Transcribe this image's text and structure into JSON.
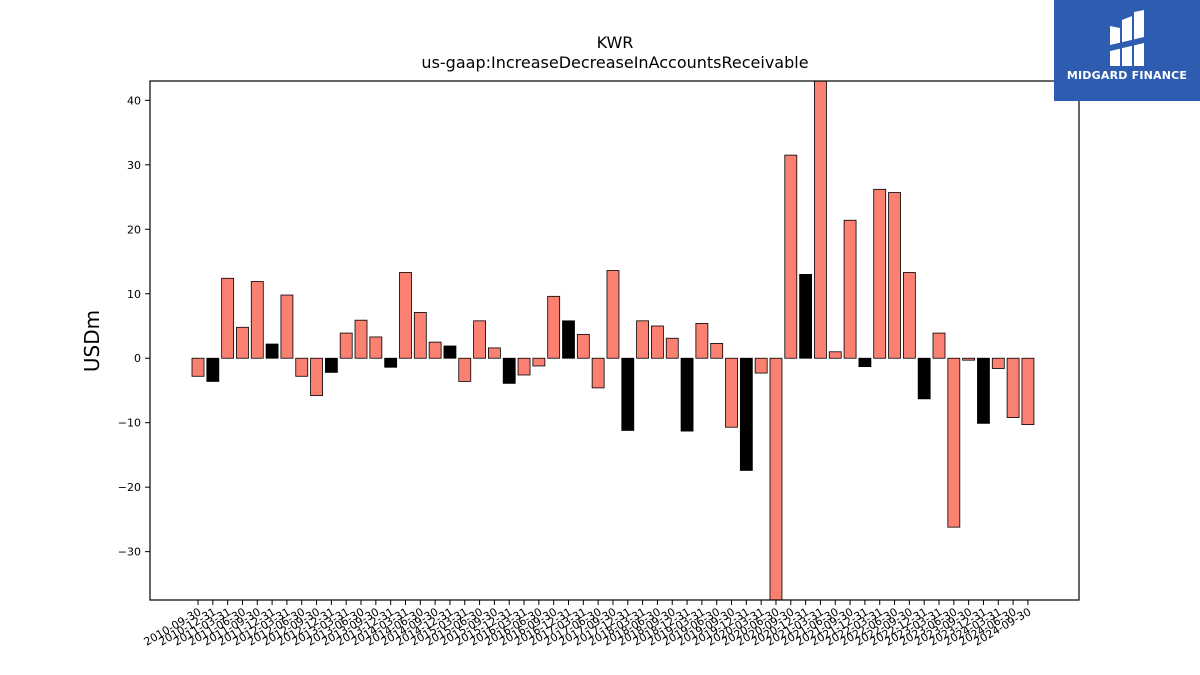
{
  "logo": {
    "text": "MIDGARD FINANCE"
  },
  "chart_data": {
    "type": "bar",
    "title": "KWR",
    "subtitle": "us-gaap:IncreaseDecreaseInAccountsReceivable",
    "xlabel": "",
    "ylabel": "USDm",
    "ylim": [
      -37.5,
      43
    ],
    "yticks": [
      -30,
      -20,
      -10,
      0,
      10,
      20,
      30,
      40
    ],
    "colors": {
      "default": "#fa8072",
      "highlight": "#000000",
      "edge": "#000000"
    },
    "categories": [
      "2010-09-30",
      "2010-12-31",
      "2011-03-31",
      "2011-06-30",
      "2011-09-30",
      "2011-12-31",
      "2012-03-31",
      "2012-06-30",
      "2012-09-30",
      "2012-12-31",
      "2013-03-31",
      "2013-06-30",
      "2013-09-30",
      "2013-12-31",
      "2014-03-31",
      "2014-06-30",
      "2014-09-30",
      "2014-12-31",
      "2015-03-31",
      "2015-06-30",
      "2015-09-30",
      "2015-12-31",
      "2016-03-31",
      "2016-06-30",
      "2016-09-30",
      "2016-12-31",
      "2017-03-31",
      "2017-06-30",
      "2017-09-30",
      "2017-12-31",
      "2018-03-31",
      "2018-06-30",
      "2018-09-30",
      "2018-12-31",
      "2019-03-31",
      "2019-06-30",
      "2019-09-30",
      "2019-12-31",
      "2020-03-31",
      "2020-06-30",
      "2020-09-30",
      "2020-12-31",
      "2021-03-31",
      "2021-06-30",
      "2021-09-30",
      "2021-12-31",
      "2022-03-31",
      "2022-06-30",
      "2022-09-30",
      "2022-12-31",
      "2023-03-31",
      "2023-06-30",
      "2023-09-30",
      "2023-12-31",
      "2024-03-31",
      "2024-06-30",
      "2024-09-30"
    ],
    "values": [
      -2.8,
      -3.6,
      12.4,
      4.8,
      11.9,
      2.2,
      9.8,
      -2.8,
      -5.8,
      -2.2,
      3.9,
      5.9,
      3.3,
      -1.4,
      13.3,
      7.1,
      2.5,
      1.9,
      -3.6,
      5.8,
      1.6,
      -3.9,
      -2.6,
      -1.2,
      9.6,
      5.8,
      3.7,
      -4.6,
      13.6,
      -11.2,
      5.8,
      5.0,
      3.1,
      -11.3,
      5.4,
      2.3,
      -10.7,
      -17.4,
      -2.3,
      -38.0,
      31.5,
      13.0,
      43.5,
      1.0,
      21.4,
      -1.3,
      26.2,
      25.7,
      13.3,
      -6.3,
      3.9,
      -26.2,
      -0.3,
      -10.1,
      -1.6,
      -9.2,
      -10.3
    ],
    "highlight": [
      false,
      true,
      false,
      false,
      false,
      true,
      false,
      false,
      false,
      true,
      false,
      false,
      false,
      true,
      false,
      false,
      false,
      true,
      false,
      false,
      false,
      true,
      false,
      false,
      false,
      true,
      false,
      false,
      false,
      true,
      false,
      false,
      false,
      true,
      false,
      false,
      false,
      true,
      false,
      false,
      false,
      true,
      false,
      false,
      false,
      true,
      false,
      false,
      false,
      true,
      false,
      false,
      false,
      true,
      false,
      false,
      false
    ],
    "grid": false,
    "legend": "none"
  }
}
